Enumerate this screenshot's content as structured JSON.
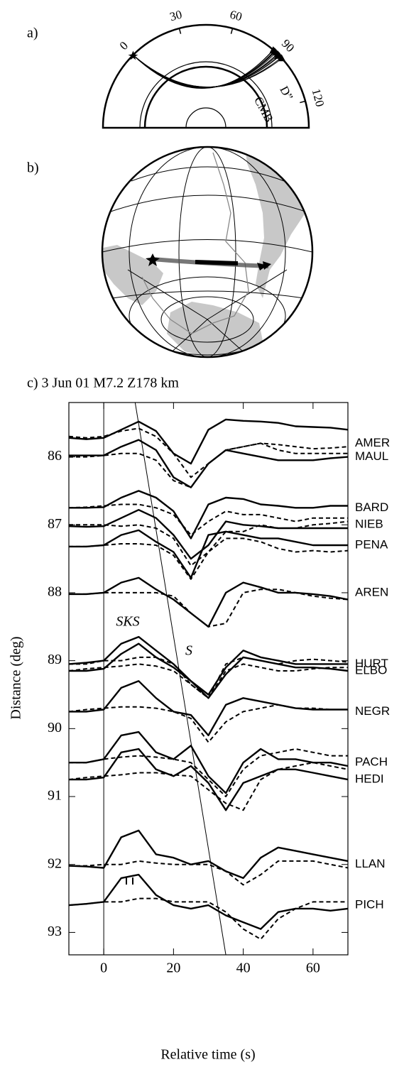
{
  "panel_a": {
    "label": "a)",
    "angle_labels": [
      "0",
      "30",
      "60",
      "90",
      "120"
    ],
    "cmb": "CMB",
    "d_double_prime": "D”"
  },
  "panel_b": {
    "label": "b)"
  },
  "chart_data": {
    "type": "line",
    "title": "c) 3 Jun 01 M7.2  Z178 km",
    "xlabel": "Relative time (s)",
    "ylabel": "Distance (deg)",
    "xlim": [
      -10,
      70
    ],
    "ylim": [
      93.33,
      85.2
    ],
    "xticks": [
      0,
      20,
      40,
      60
    ],
    "yticks": [
      86,
      87,
      88,
      89,
      90,
      91,
      92,
      93
    ],
    "x": [
      -10,
      -5,
      0,
      5,
      10,
      15,
      20,
      25,
      30,
      35,
      40,
      45,
      50,
      55,
      60,
      65,
      70
    ],
    "phase_labels": [
      "SKS",
      "S"
    ],
    "s_line": {
      "x": [
        9,
        35
      ],
      "y": [
        85.2,
        93.33
      ]
    },
    "stations": [
      {
        "name": "AMER",
        "distance": 85.8,
        "data": [
          85.72,
          85.74,
          85.72,
          85.6,
          85.48,
          85.62,
          85.95,
          86.1,
          85.6,
          85.45,
          85.47,
          85.48,
          85.5,
          85.55,
          85.56,
          85.57,
          85.6
        ],
        "synthetic": [
          85.7,
          85.72,
          85.7,
          85.62,
          85.58,
          85.7,
          85.95,
          86.3,
          86.1,
          85.9,
          85.85,
          85.8,
          85.82,
          85.85,
          85.88,
          85.87,
          85.85
        ]
      },
      {
        "name": "MAUL",
        "distance": 86.0,
        "data": [
          85.98,
          85.98,
          85.98,
          85.85,
          85.75,
          85.9,
          86.3,
          86.45,
          86.1,
          85.9,
          85.95,
          86.0,
          86.05,
          86.05,
          86.05,
          86.02,
          86.0
        ],
        "synthetic": [
          86.0,
          86.0,
          85.98,
          85.95,
          85.95,
          86.05,
          86.35,
          86.45,
          86.1,
          85.9,
          85.85,
          85.8,
          85.9,
          85.95,
          85.95,
          85.95,
          85.95
        ]
      },
      {
        "name": "BARD",
        "distance": 86.75,
        "data": [
          86.75,
          86.75,
          86.74,
          86.6,
          86.5,
          86.6,
          86.8,
          87.2,
          86.7,
          86.6,
          86.62,
          86.7,
          86.72,
          86.75,
          86.75,
          86.72,
          86.72
        ],
        "synthetic": [
          86.75,
          86.74,
          86.72,
          86.7,
          86.7,
          86.75,
          86.85,
          87.15,
          86.95,
          86.8,
          86.85,
          86.85,
          86.9,
          86.95,
          86.9,
          86.9,
          86.9
        ]
      },
      {
        "name": "NIEB",
        "distance": 87.0,
        "data": [
          87.02,
          87.03,
          87.02,
          86.9,
          86.78,
          86.9,
          87.15,
          87.5,
          87.3,
          86.95,
          87.0,
          87.02,
          87.05,
          87.05,
          87.05,
          87.05,
          87.05
        ],
        "synthetic": [
          87.0,
          87.0,
          87.0,
          87.02,
          87.0,
          87.05,
          87.2,
          87.6,
          87.4,
          87.1,
          87.1,
          87.0,
          87.05,
          87.05,
          87.0,
          86.98,
          86.95
        ]
      },
      {
        "name": "PENA",
        "distance": 87.3,
        "data": [
          87.32,
          87.32,
          87.3,
          87.15,
          87.08,
          87.25,
          87.4,
          87.78,
          87.15,
          87.1,
          87.15,
          87.2,
          87.2,
          87.25,
          87.3,
          87.3,
          87.3
        ],
        "synthetic": [
          87.32,
          87.32,
          87.3,
          87.28,
          87.28,
          87.3,
          87.45,
          87.8,
          87.4,
          87.2,
          87.2,
          87.25,
          87.35,
          87.4,
          87.38,
          87.4,
          87.38
        ]
      },
      {
        "name": "AREN",
        "distance": 88.0,
        "data": [
          88.02,
          88.02,
          88.0,
          87.85,
          87.78,
          87.95,
          88.1,
          88.3,
          88.5,
          88.0,
          87.85,
          87.92,
          88.0,
          88.0,
          88.02,
          88.05,
          88.1
        ],
        "synthetic": [
          88.02,
          88.02,
          88.0,
          88.0,
          88.0,
          88.0,
          88.05,
          88.3,
          88.5,
          88.45,
          88.0,
          87.95,
          87.95,
          88.0,
          88.05,
          88.08,
          88.1
        ]
      },
      {
        "name": "HURT",
        "distance": 89.05,
        "data": [
          89.05,
          89.03,
          89.0,
          88.75,
          88.65,
          88.85,
          89.05,
          89.3,
          89.5,
          89.1,
          88.85,
          88.95,
          89.0,
          89.05,
          89.05,
          89.05,
          89.05
        ],
        "synthetic": [
          89.05,
          89.05,
          89.0,
          89.0,
          88.95,
          88.95,
          89.05,
          89.35,
          89.55,
          89.05,
          88.95,
          89.0,
          89.05,
          89.0,
          88.98,
          89.0,
          89.02
        ]
      },
      {
        "name": "ELBO",
        "distance": 89.15,
        "data": [
          89.15,
          89.15,
          89.12,
          88.9,
          88.75,
          88.95,
          89.1,
          89.3,
          89.55,
          89.2,
          88.95,
          89.0,
          89.05,
          89.1,
          89.1,
          89.12,
          89.15
        ],
        "synthetic": [
          89.15,
          89.12,
          89.1,
          89.08,
          89.05,
          89.08,
          89.15,
          89.35,
          89.55,
          89.15,
          89.05,
          89.1,
          89.15,
          89.15,
          89.12,
          89.1,
          89.1
        ]
      },
      {
        "name": "NEGR",
        "distance": 89.75,
        "data": [
          89.75,
          89.75,
          89.72,
          89.4,
          89.3,
          89.55,
          89.75,
          89.8,
          90.1,
          89.65,
          89.55,
          89.6,
          89.65,
          89.7,
          89.72,
          89.72,
          89.72
        ],
        "synthetic": [
          89.75,
          89.72,
          89.7,
          89.68,
          89.68,
          89.7,
          89.75,
          89.85,
          90.2,
          89.9,
          89.75,
          89.7,
          89.65,
          89.7,
          89.7,
          89.72,
          89.72
        ]
      },
      {
        "name": "PACH",
        "distance": 90.5,
        "data": [
          90.5,
          90.5,
          90.45,
          90.1,
          90.05,
          90.35,
          90.45,
          90.25,
          90.7,
          90.95,
          90.5,
          90.3,
          90.45,
          90.45,
          90.5,
          90.5,
          90.55
        ],
        "synthetic": [
          90.5,
          90.5,
          90.45,
          90.42,
          90.4,
          90.42,
          90.45,
          90.5,
          90.75,
          91.0,
          90.6,
          90.4,
          90.35,
          90.3,
          90.35,
          90.4,
          90.4
        ]
      },
      {
        "name": "HEDI",
        "distance": 90.75,
        "data": [
          90.75,
          90.75,
          90.72,
          90.35,
          90.3,
          90.6,
          90.7,
          90.55,
          90.8,
          91.2,
          90.8,
          90.7,
          90.6,
          90.6,
          90.65,
          90.7,
          90.75
        ],
        "synthetic": [
          90.75,
          90.72,
          90.7,
          90.68,
          90.65,
          90.65,
          90.68,
          90.7,
          90.9,
          91.1,
          91.2,
          90.75,
          90.6,
          90.55,
          90.5,
          90.55,
          90.6
        ]
      },
      {
        "name": "LLAN",
        "distance": 92.0,
        "data": [
          92.02,
          92.03,
          92.05,
          91.6,
          91.5,
          91.85,
          91.9,
          92.0,
          91.95,
          92.1,
          92.2,
          91.9,
          91.75,
          91.8,
          91.85,
          91.9,
          91.95
        ],
        "synthetic": [
          92.02,
          92.02,
          92.0,
          92.0,
          91.95,
          91.98,
          92.0,
          92.0,
          92.0,
          92.1,
          92.3,
          92.15,
          91.95,
          91.95,
          91.95,
          92.0,
          92.05
        ]
      },
      {
        "name": "PICH",
        "distance": 92.6,
        "data": [
          92.6,
          92.58,
          92.55,
          92.2,
          92.15,
          92.45,
          92.6,
          92.65,
          92.6,
          92.75,
          92.85,
          92.95,
          92.7,
          92.65,
          92.65,
          92.68,
          92.65
        ],
        "synthetic": [
          92.6,
          92.58,
          92.55,
          92.55,
          92.5,
          92.5,
          92.55,
          92.55,
          92.55,
          92.7,
          92.95,
          93.1,
          92.8,
          92.65,
          92.55,
          92.55,
          92.55
        ]
      }
    ]
  }
}
